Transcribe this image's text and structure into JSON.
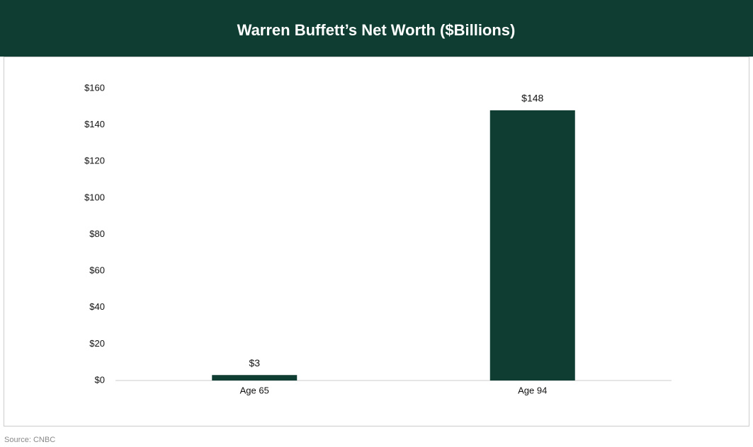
{
  "chart_data": {
    "type": "bar",
    "title": "Warren Buffett’s Net Worth ($Billions)",
    "categories": [
      "Age 65",
      "Age 94"
    ],
    "values": [
      3,
      148
    ],
    "value_labels": [
      "$3",
      "$148"
    ],
    "color": "#0f3d32",
    "ylim": [
      0,
      160
    ],
    "yticks": [
      {
        "value": 0,
        "label": "$0"
      },
      {
        "value": 20,
        "label": "$20"
      },
      {
        "value": 40,
        "label": "$40"
      },
      {
        "value": 60,
        "label": "$60"
      },
      {
        "value": 80,
        "label": "$80"
      },
      {
        "value": 100,
        "label": "$100"
      },
      {
        "value": 120,
        "label": "$120"
      },
      {
        "value": 140,
        "label": "$140"
      },
      {
        "value": 160,
        "label": "$160"
      }
    ],
    "grid": false,
    "source": "Source: CNBC"
  }
}
